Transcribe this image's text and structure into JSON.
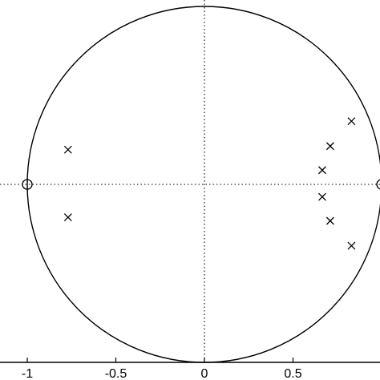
{
  "chart_data": {
    "type": "scatter",
    "title": "",
    "xlabel": "",
    "ylabel": "",
    "xlim": [
      -1.05,
      1.0
    ],
    "ylim": [
      -1.0,
      1.0
    ],
    "grid": false,
    "unit_circle": true,
    "axis_lines": "dotted",
    "xticks": [
      {
        "value": -1,
        "label": "-1"
      },
      {
        "value": -0.5,
        "label": "-0.5"
      },
      {
        "value": 0,
        "label": "0"
      },
      {
        "value": 0.5,
        "label": "0.5"
      }
    ],
    "series": [
      {
        "marker": "x",
        "points": [
          {
            "x": -0.77,
            "y": 0.195
          },
          {
            "x": -0.77,
            "y": -0.185
          },
          {
            "x": 0.83,
            "y": 0.355
          },
          {
            "x": 0.71,
            "y": 0.215
          },
          {
            "x": 0.665,
            "y": 0.08
          },
          {
            "x": 0.665,
            "y": -0.07
          },
          {
            "x": 0.71,
            "y": -0.205
          },
          {
            "x": 0.83,
            "y": -0.345
          }
        ]
      },
      {
        "marker": "o",
        "points": [
          {
            "x": -1.0,
            "y": 0.0
          },
          {
            "x": 1.0,
            "y": 0.0
          }
        ]
      }
    ],
    "colors": {
      "line": "#000000",
      "background": "#ffffff"
    }
  }
}
